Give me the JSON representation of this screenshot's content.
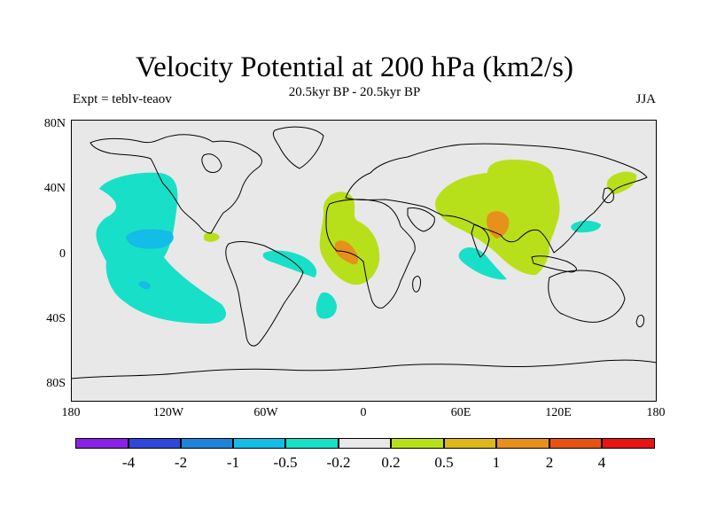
{
  "title": "Velocity Potential at 200 hPa (km2/s)",
  "subtitle": "20.5kyr BP - 20.5kyr BP",
  "left_label": "Expt = teblv-teaov",
  "right_label": "JJA",
  "lat_ticks": [
    "80N",
    "40N",
    "0",
    "40S",
    "80S"
  ],
  "lon_ticks": [
    "180",
    "120W",
    "60W",
    "0",
    "60E",
    "120E",
    "180"
  ],
  "colorbar": {
    "colors": [
      "#8a22e6",
      "#3046d8",
      "#1e84da",
      "#14bce8",
      "#18e0c8",
      "#e8e8e8",
      "#b8e01a",
      "#dcb81a",
      "#e8901c",
      "#e65414",
      "#e61414"
    ],
    "labels": [
      "-4",
      "-2",
      "-1",
      "-0.5",
      "-0.2",
      "0.2",
      "0.5",
      "1",
      "2",
      "4"
    ]
  },
  "palette": {
    "background": "#e8e8e8",
    "neg_light": "#18e0c8",
    "neg_mid": "#14bce8",
    "pos_light": "#b8e01a",
    "pos_mid": "#e8901c"
  }
}
